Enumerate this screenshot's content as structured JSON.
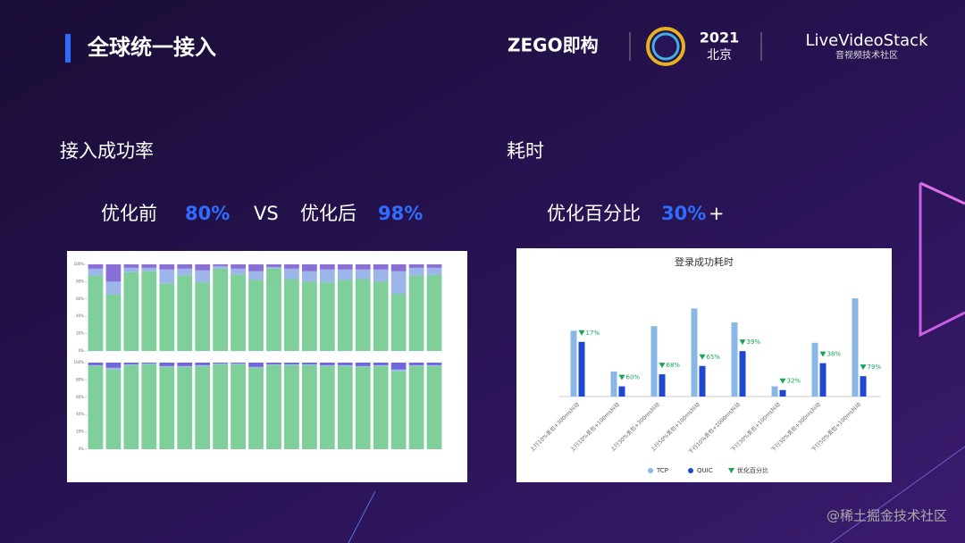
{
  "header": {
    "title": "全球统一接入",
    "brand": "ZEGO即构",
    "event_year": "2021",
    "event_city": "北京",
    "partner": "LiveVideoStack",
    "partner_subtitle": "音视频技术社区"
  },
  "success_rate": {
    "heading": "接入成功率",
    "before_label": "优化前",
    "before_value": "80%",
    "vs": "VS",
    "after_label": "优化后",
    "after_value": "98%"
  },
  "latency": {
    "heading": "耗时",
    "label": "优化百分比",
    "value": "30%",
    "suffix": "+"
  },
  "watermark": "@稀土掘金技术社区",
  "chart_data": [
    {
      "type": "stacked_bar",
      "categories": [
        null,
        null,
        null,
        null,
        null,
        null,
        null,
        null,
        null,
        null,
        null,
        null,
        null,
        null,
        null,
        null,
        null,
        null,
        null,
        null
      ],
      "ylim": [
        0,
        100
      ],
      "yticks": [
        {
          "value": 0,
          "label": "0%"
        },
        {
          "value": 20,
          "label": "20%"
        },
        {
          "value": 40,
          "label": "40%"
        },
        {
          "value": 60,
          "label": "60%"
        },
        {
          "value": 80,
          "label": "80%"
        },
        {
          "value": 100,
          "label": "100%"
        }
      ],
      "series": [
        {
          "color": "#7ecf9a",
          "values": [
            87,
            65,
            91,
            92,
            78,
            87,
            79,
            95,
            88,
            82,
            95,
            83,
            80,
            79,
            82,
            83,
            80,
            66,
            87,
            88
          ]
        },
        {
          "color": "#9cb6ea",
          "values": [
            8,
            15,
            5,
            4,
            16,
            8,
            14,
            3,
            7,
            10,
            2,
            12,
            12,
            15,
            12,
            11,
            14,
            26,
            9,
            8
          ]
        },
        {
          "color": "#8a6fd6",
          "values": [
            5,
            20,
            4,
            4,
            6,
            5,
            7,
            2,
            5,
            8,
            3,
            5,
            8,
            6,
            6,
            6,
            6,
            8,
            4,
            4
          ]
        }
      ]
    },
    {
      "type": "stacked_bar",
      "categories": [
        null,
        null,
        null,
        null,
        null,
        null,
        null,
        null,
        null,
        null,
        null,
        null,
        null,
        null,
        null,
        null,
        null,
        null,
        null,
        null
      ],
      "ylim": [
        0,
        100
      ],
      "yticks": [
        {
          "value": 0,
          "label": "0%"
        },
        {
          "value": 20,
          "label": "20%"
        },
        {
          "value": 40,
          "label": "40%"
        },
        {
          "value": 60,
          "label": "60%"
        },
        {
          "value": 80,
          "label": "80%"
        },
        {
          "value": 100,
          "label": "100%"
        }
      ],
      "series": [
        {
          "color": "#7ecf9a",
          "values": [
            96,
            92,
            97,
            98,
            95,
            95,
            96,
            98,
            98,
            94,
            97,
            97,
            97,
            96,
            96,
            95,
            96,
            90,
            96,
            96
          ]
        },
        {
          "color": "#9cb6ea",
          "values": [
            1,
            2,
            1,
            1,
            1,
            1,
            1,
            1,
            1,
            1,
            1,
            1,
            1,
            1,
            1,
            1,
            1,
            2,
            1,
            1
          ]
        },
        {
          "color": "#6f68d8",
          "values": [
            3,
            6,
            2,
            1,
            4,
            4,
            3,
            1,
            1,
            5,
            2,
            2,
            2,
            3,
            3,
            4,
            3,
            8,
            3,
            3
          ]
        }
      ]
    },
    {
      "type": "bar",
      "title": "登录成功耗时",
      "categories": [
        "上行10%丢包+300ms抖动",
        "上行10%丢包+100ms抖动",
        "上行30%丢包+300ms抖动",
        "上行50%丢包+100ms抖动",
        "下行10%丢包+1000ms抖动",
        "下行30%丢包+100ms抖动",
        "下行30%丢包+300ms抖动",
        "下行50%丢包+100ms抖动"
      ],
      "series": [
        {
          "name": "TCP",
          "color": "#8ab8e6",
          "values": [
            71,
            27,
            76,
            95,
            80,
            11,
            58,
            106
          ]
        },
        {
          "name": "QUIC",
          "color": "#1f48d0",
          "values": [
            59,
            11,
            24,
            33,
            49,
            7,
            36,
            22
          ]
        },
        {
          "name": "优化百分比",
          "color": "#18a558",
          "values": [
            17,
            60,
            68,
            65,
            39,
            32,
            38,
            79
          ],
          "value_labels": [
            "17%",
            "60%",
            "68%",
            "65%",
            "39%",
            "32%",
            "38%",
            "79%"
          ]
        }
      ]
    }
  ]
}
